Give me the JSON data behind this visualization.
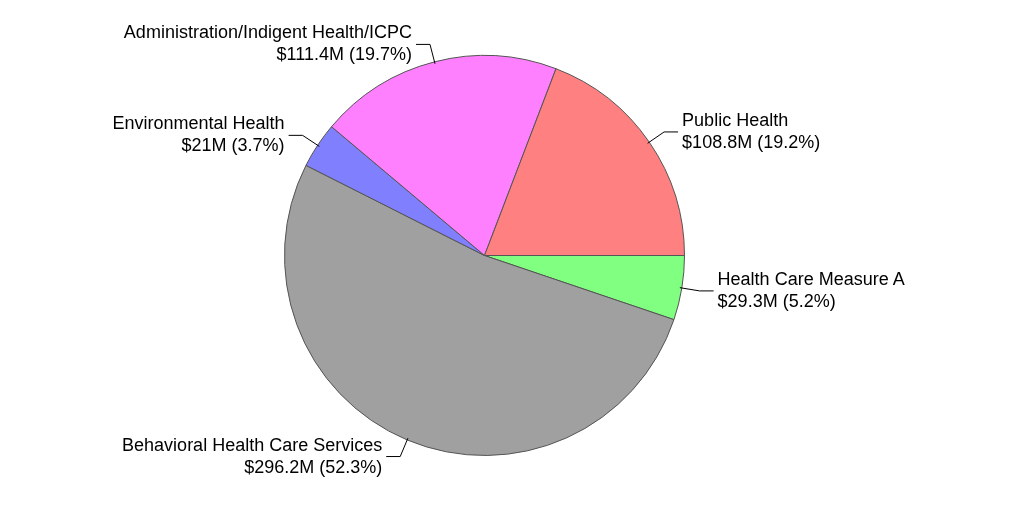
{
  "chart_data": {
    "type": "pie",
    "categories": [
      "Health Care Measure A",
      "Behavioral Health Care Services",
      "Environmental Health",
      "Administration/Indigent Health/ICPC",
      "Public Health"
    ],
    "values": [
      5.2,
      52.3,
      3.7,
      19.7,
      19.2
    ],
    "colors": [
      "#80ff80",
      "#a0a0a0",
      "#8080ff",
      "#ff80ff",
      "#ff8080"
    ],
    "value_labels": [
      "$29.3M (5.2%)",
      "$296.2M (52.3%)",
      "$21M (3.7%)",
      "$111.4M (19.7%)",
      "$108.8M (19.2%)"
    ],
    "legend": false
  }
}
